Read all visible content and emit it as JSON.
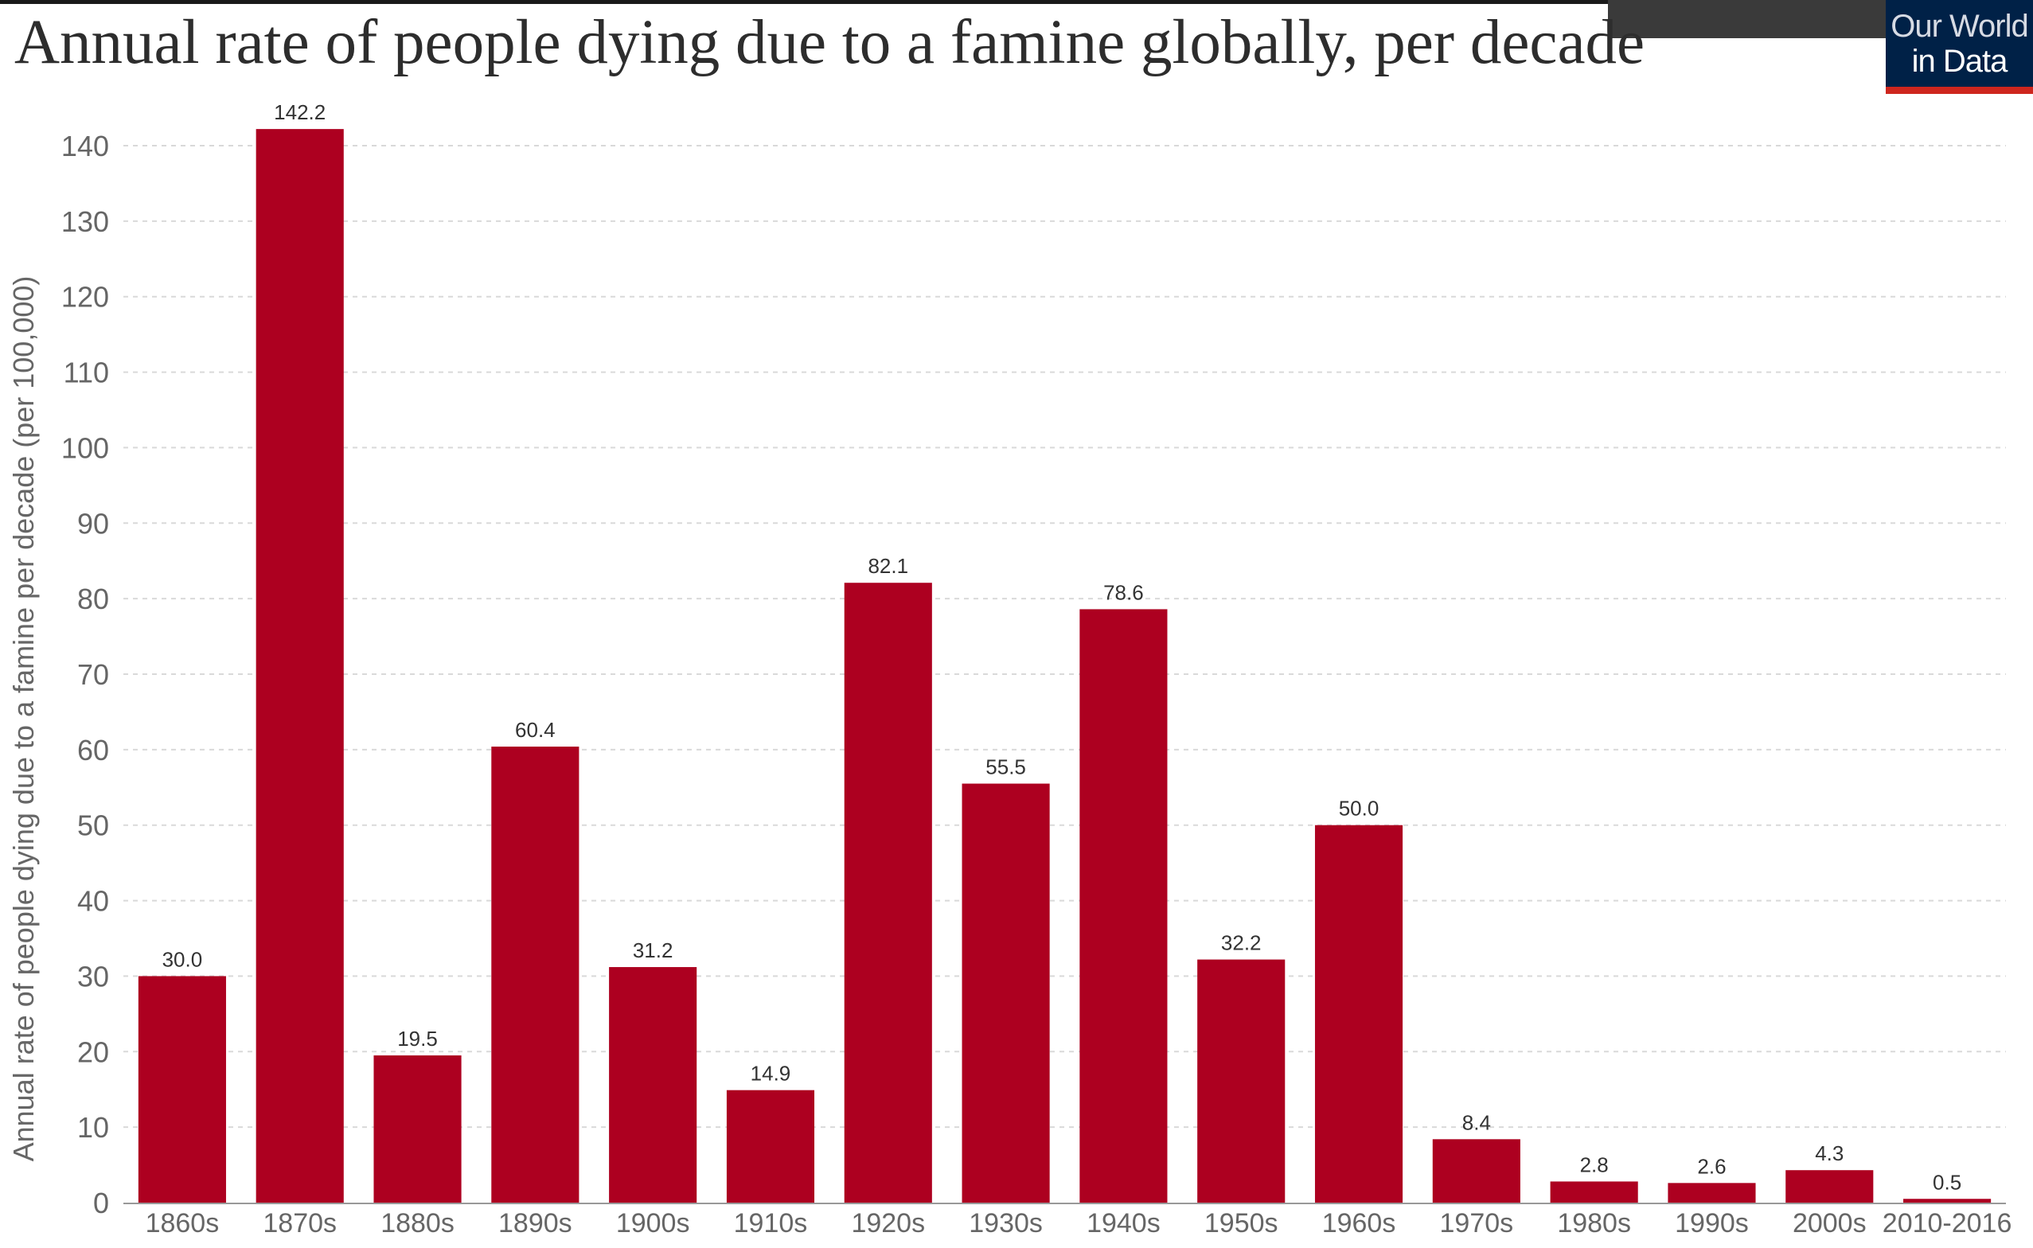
{
  "header": {
    "title": "Annual rate of people dying due to a famine globally, per decade"
  },
  "logo": {
    "line1": "Our World",
    "line2": "in Data",
    "background": "#002147",
    "stripe": "#ce261e"
  },
  "chart_data": {
    "type": "bar",
    "title": "Annual rate of people dying due to a famine globally, per decade",
    "xlabel": "",
    "ylabel": "Annual rate of people dying due to a famine per decade (per 100,000)",
    "categories": [
      "1860s",
      "1870s",
      "1880s",
      "1890s",
      "1900s",
      "1910s",
      "1920s",
      "1930s",
      "1940s",
      "1950s",
      "1960s",
      "1970s",
      "1980s",
      "1990s",
      "2000s",
      "2010-2016"
    ],
    "values": [
      30.0,
      142.2,
      19.5,
      60.4,
      31.2,
      14.9,
      82.1,
      55.5,
      78.6,
      32.2,
      50.0,
      8.4,
      2.8,
      2.6,
      4.3,
      0.5
    ],
    "value_labels": [
      "30.0",
      "142.2",
      "19.5",
      "60.4",
      "31.2",
      "14.9",
      "82.1",
      "55.5",
      "78.6",
      "32.2",
      "50.0",
      "8.4",
      "2.8",
      "2.6",
      "4.3",
      "0.5"
    ],
    "ylim": [
      0,
      140
    ],
    "yticks": [
      0,
      10,
      20,
      30,
      40,
      50,
      60,
      70,
      80,
      90,
      100,
      110,
      120,
      130,
      140
    ],
    "grid": true,
    "legend": "none",
    "bar_color": "#ad0020"
  }
}
